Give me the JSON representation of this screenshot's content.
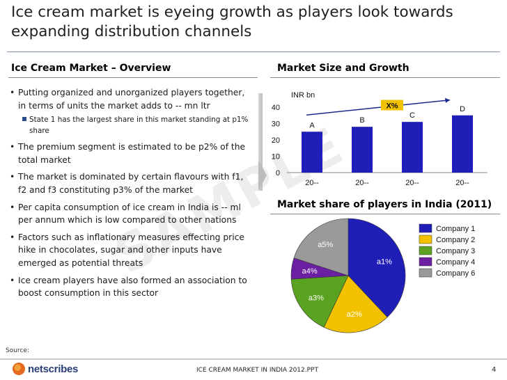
{
  "slide": {
    "title": "Ice cream market is eyeing growth as players look towards expanding distribution channels"
  },
  "left": {
    "heading": "Ice Cream Market – Overview",
    "bullets": [
      "Putting organized and unorganized players together, in terms of units the market adds to -- mn ltr",
      "The premium segment is estimated to be p2% of the total market",
      "The market is dominated by certain flavours with f1, f2 and f3 constituting p3% of the market",
      "Per capita consumption of ice cream in India is -- ml per annum which is low compared to other nations",
      "Factors such as inflationary measures effecting price hike in chocolates, sugar and other inputs have emerged as potential threats",
      "Ice cream players have also formed an association to boost consumption in this sector"
    ],
    "sub_bullet": "State 1 has the largest share in this market standing at p1% share"
  },
  "watermark": "SAMPLE",
  "right": {
    "bar_heading": "Market Size and Growth",
    "pie_heading": "Market share of players in India (2011)"
  },
  "footer": {
    "source": "Source:",
    "logo": "netscribes",
    "doc": "ICE CREAM MARKET IN INDIA 2012.PPT",
    "page": "4"
  },
  "chart_data": [
    {
      "type": "bar",
      "unit_label": "INR bn",
      "categories": [
        "20--",
        "20--",
        "20--",
        "20--"
      ],
      "values": [
        25,
        28,
        31,
        35
      ],
      "data_labels": [
        "A",
        "B",
        "C",
        "D"
      ],
      "yticks": [
        0,
        10,
        20,
        30,
        40
      ],
      "ylim": [
        0,
        40
      ],
      "growth_label": "X%",
      "color": "#1f1fb8",
      "grid": false
    },
    {
      "type": "pie",
      "labels": [
        "a1%",
        "a2%",
        "a3%",
        "a4%",
        "a5%"
      ],
      "legend": [
        "Company 1",
        "Company 2",
        "Company 3",
        "Company 4",
        "Company 6"
      ],
      "values": [
        38,
        19,
        17,
        6,
        20
      ],
      "colors": [
        "#1f1fb8",
        "#f2c200",
        "#5aa320",
        "#6a1fa3",
        "#9a9a9a"
      ],
      "legend_position": "right"
    }
  ]
}
